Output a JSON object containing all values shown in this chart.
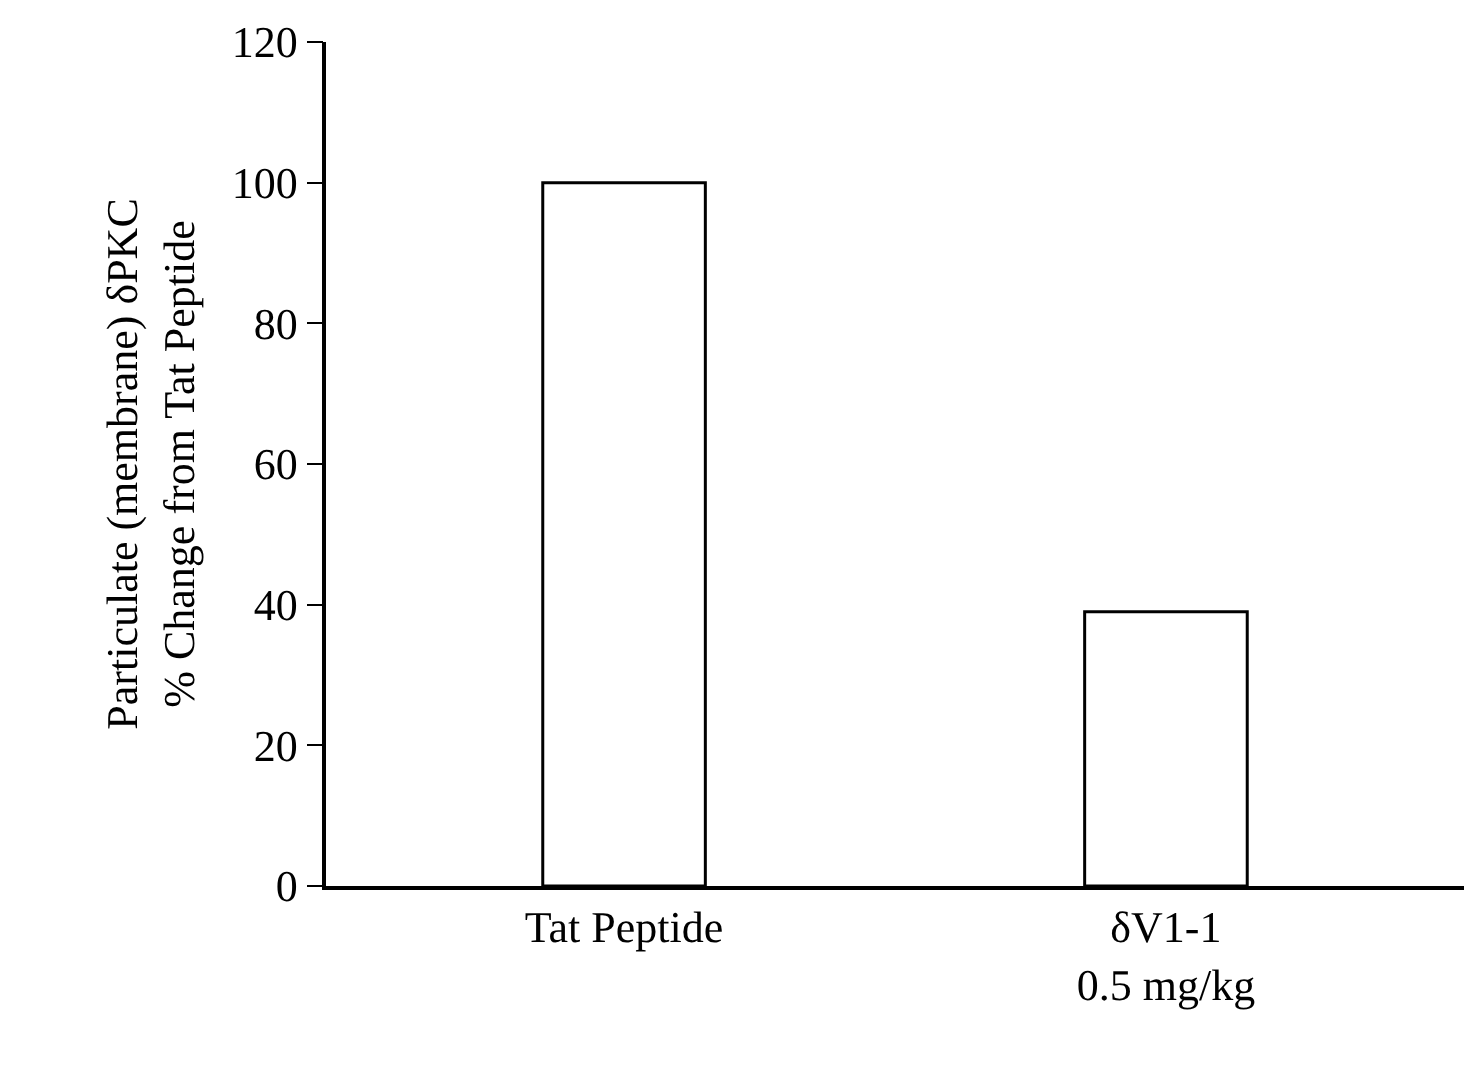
{
  "chart_data": {
    "type": "bar",
    "ylabel": "Particulate (membrane) δPKC\n% Change from Tat Peptide",
    "categories": [
      "Tat Peptide",
      "δV1-1\n0.5 mg/kg"
    ],
    "values": [
      100,
      39
    ],
    "color": "#ffffff",
    "ylim": [
      0,
      120
    ],
    "yticks": [
      0,
      20,
      40,
      60,
      80,
      100,
      120
    ]
  }
}
